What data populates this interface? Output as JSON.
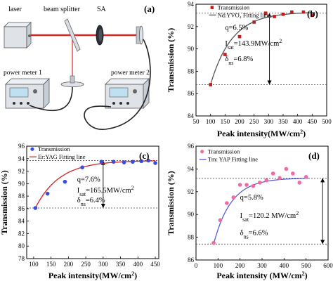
{
  "panel_a": {
    "tag": "(a)",
    "labels": {
      "laser": "laser",
      "beam_splitter": "beam splitter",
      "sa": "SA",
      "power_meter_1": "power meter 1",
      "power_meter_2": "power meter 2"
    },
    "colors": {
      "beam": "#e32222",
      "device": "#dfe3e8",
      "display": "#bfe0f0"
    }
  },
  "chart_data": [
    {
      "id": "b",
      "type": "scatter",
      "tag": "(b)",
      "xlabel": "Peak intensity(MW/cm",
      "xlabel_sup": "2",
      "xlabel_tail": ")",
      "ylabel": "Transmission (%)",
      "xlim": [
        50,
        500
      ],
      "ylim": [
        84,
        94
      ],
      "xticks": [
        50,
        100,
        150,
        200,
        250,
        300,
        350,
        400,
        450,
        500
      ],
      "yticks": [
        84,
        86,
        88,
        90,
        92,
        94
      ],
      "series": [
        {
          "name": "Transmission",
          "marker": "square",
          "color": "#c21b1b",
          "x": [
            100,
            150,
            200,
            250,
            290,
            320,
            350,
            380,
            420,
            450
          ],
          "y": [
            86.8,
            89.5,
            91.1,
            92.4,
            93.2,
            92.9,
            93.1,
            93.3,
            93.3,
            93.0
          ]
        },
        {
          "name": "Nd:YVO₄ Fitting line",
          "marker": "line",
          "color": "#555555",
          "fit": {
            "a": 86.8,
            "b": 6.5,
            "k": 0.0135,
            "x0": 100,
            "x1": 460
          }
        }
      ],
      "refs": [
        93.2,
        86.8
      ],
      "arrow_x": 303,
      "annotations": [
        {
          "pre": "q=",
          "val": "6.5%"
        },
        {
          "pre": "I",
          "sub": "sat",
          "mid": "=143.9MW/cm",
          "sup": "2"
        },
        {
          "pre": "δ",
          "sub": "ns",
          "mid": "=6.8%"
        }
      ],
      "ann_pos": [
        150,
        91.7,
        90.3,
        88.9
      ],
      "legend_pos": [
        95,
        93.6
      ]
    },
    {
      "id": "c",
      "type": "scatter",
      "tag": "(c)",
      "xlabel": "Peak intensity(MW/cm",
      "xlabel_sup": "2",
      "xlabel_tail": ")",
      "ylabel": "Transmission (%)",
      "xlim": [
        80,
        460
      ],
      "ylim": [
        78,
        96
      ],
      "xticks": [
        100,
        150,
        200,
        250,
        300,
        350,
        400,
        450
      ],
      "yticks": [
        78,
        80,
        82,
        84,
        86,
        88,
        90,
        92,
        94,
        96
      ],
      "series": [
        {
          "name": "Transmission",
          "marker": "circle",
          "color": "#3a4de0",
          "x": [
            105,
            140,
            190,
            240,
            295,
            330,
            360,
            385,
            410,
            430,
            450
          ],
          "y": [
            86.1,
            88.4,
            90.3,
            92.6,
            93.5,
            93.5,
            93.4,
            93.5,
            93.6,
            93.7,
            93.3
          ],
          "y_fix": {
            "3": 92.8
          }
        },
        {
          "name": "Er:YAG Fitting line",
          "marker": "line",
          "color": "#d62020",
          "fit": {
            "a": 86.1,
            "b": 7.6,
            "k": 0.0145,
            "x0": 105,
            "x1": 450
          }
        }
      ],
      "refs": [
        93.7,
        86.1
      ],
      "arrow_x": 300,
      "annotations": [
        {
          "pre": "q=",
          "val": "7.6%"
        },
        {
          "pre": "I",
          "sub": "sat",
          "mid": "=165.5MW/cm",
          "sup": "2"
        },
        {
          "pre": "δ",
          "sub": "ns",
          "mid": "=6.4%"
        }
      ],
      "ann_pos": [
        225,
        90.3,
        88.6,
        87.0
      ],
      "legend_pos": [
        88,
        95.3
      ]
    },
    {
      "id": "d",
      "type": "scatter",
      "tag": "(d)",
      "xlabel": "Peak intensity (MW/cm",
      "xlabel_sup": "2",
      "xlabel_tail": ")",
      "ylabel": "Transmission (%)",
      "xlim": [
        0,
        600
      ],
      "ylim": [
        86,
        96
      ],
      "xticks": [
        0,
        100,
        200,
        300,
        400,
        500,
        600
      ],
      "yticks": [
        86,
        88,
        90,
        92,
        94,
        96
      ],
      "series": [
        {
          "name": "Transmission",
          "marker": "circle",
          "color": "#f06aa8",
          "x": [
            80,
            110,
            140,
            170,
            200,
            230,
            260,
            290,
            320,
            350,
            380,
            410,
            440,
            470,
            500
          ],
          "y": [
            87.5,
            89.5,
            91.0,
            91.5,
            92.6,
            92.6,
            92.5,
            92.8,
            93.0,
            93.6,
            93.2,
            94.0,
            93.6,
            92.8,
            93.3
          ]
        },
        {
          "name": "Tm: YAP Fitting line",
          "marker": "line",
          "color": "#5b5bd6",
          "fit": {
            "a": 87.4,
            "b": 5.8,
            "k": 0.0125,
            "x0": 80,
            "x1": 510
          }
        }
      ],
      "refs": [
        93.2,
        87.4
      ],
      "arrow_x": 575,
      "annotations": [
        {
          "pre": "q=",
          "val": "5.8%"
        },
        {
          "pre": "I",
          "sub": "sat",
          "mid": "=120.2 MW/cm",
          "sup": "2"
        },
        {
          "pre": "δ",
          "sub": "ns",
          "mid": "=6.6%"
        }
      ],
      "ann_pos": [
        200,
        91.3,
        89.7,
        88.2
      ],
      "legend_pos": [
        15,
        95.4
      ]
    }
  ]
}
